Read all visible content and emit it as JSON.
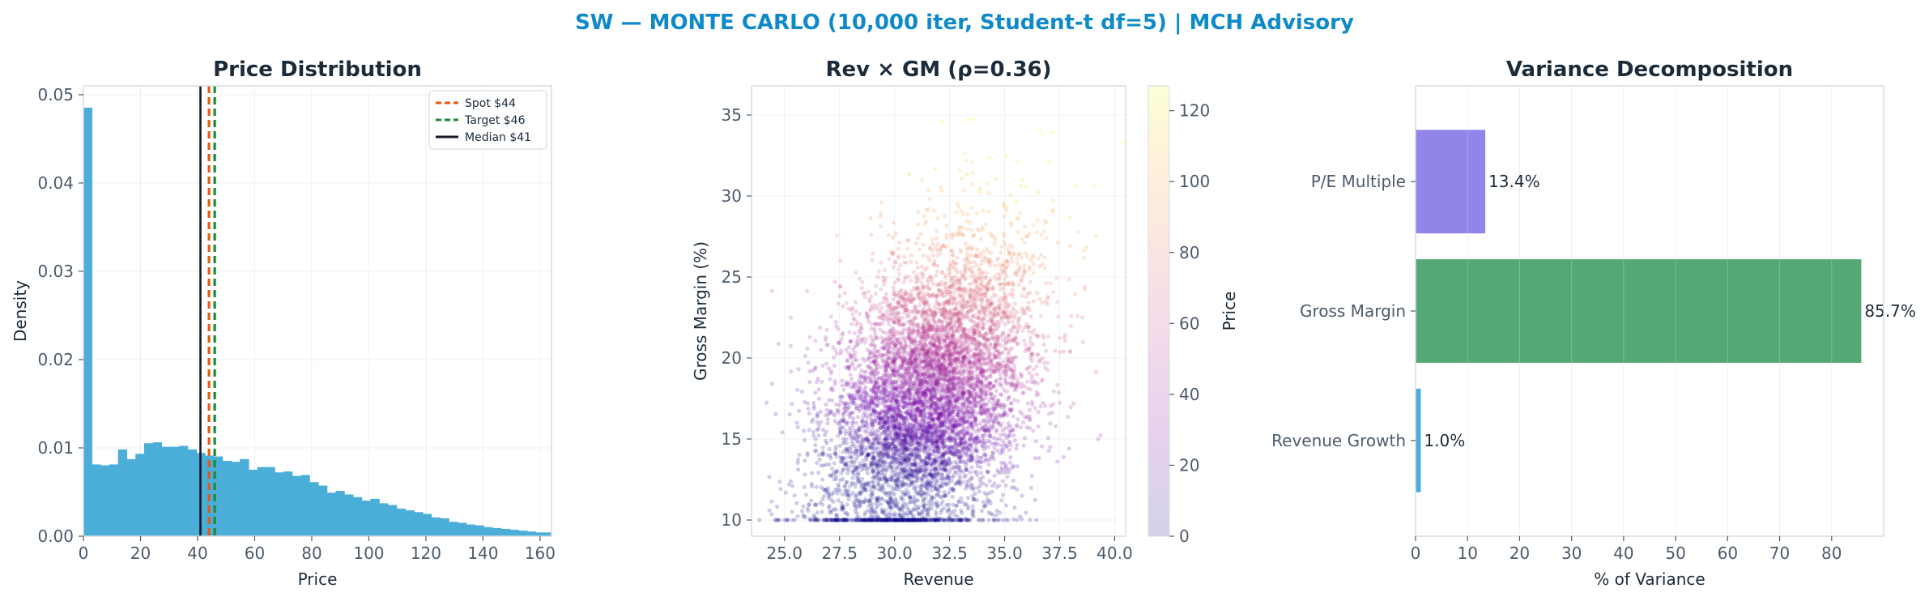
{
  "suptitle": "SW — MONTE CARLO (10,000 iter, Student-t df=5) | MCH Advisory",
  "colors": {
    "accent": "#0e8ac8",
    "hist": "#4aaed8",
    "spot": "#e8590c",
    "target": "#1a8a3a",
    "median": "#111827",
    "pe_bar": "#8b7ee8",
    "gm_bar": "#4aa36c",
    "rev_bar": "#3ea6d6"
  },
  "chart_data": [
    {
      "type": "bar",
      "title": "Price Distribution",
      "xlabel": "Price",
      "ylabel": "Density",
      "xlim": [
        0,
        164
      ],
      "ylim": [
        0,
        0.051
      ],
      "xticks": [
        "0",
        "20",
        "40",
        "60",
        "80",
        "100",
        "120",
        "140",
        "160"
      ],
      "yticks": [
        "0.00",
        "0.01",
        "0.02",
        "0.03",
        "0.04",
        "0.05"
      ],
      "bin_start": 0,
      "bin_width": 3.05,
      "densities": [
        0.0485,
        0.0081,
        0.008,
        0.0081,
        0.0098,
        0.0087,
        0.0093,
        0.0105,
        0.0106,
        0.0101,
        0.0101,
        0.0102,
        0.0098,
        0.0094,
        0.0091,
        0.009,
        0.0085,
        0.0084,
        0.0087,
        0.0075,
        0.0078,
        0.0078,
        0.0072,
        0.0073,
        0.0068,
        0.0069,
        0.0061,
        0.0057,
        0.0049,
        0.0051,
        0.0047,
        0.0044,
        0.004,
        0.0042,
        0.0037,
        0.0035,
        0.0031,
        0.0029,
        0.0027,
        0.0025,
        0.0021,
        0.002,
        0.0016,
        0.0015,
        0.0013,
        0.0012,
        0.001,
        0.0009,
        0.0008,
        0.0007,
        0.0006,
        0.0005,
        0.0004,
        0.0004
      ],
      "vlines": [
        {
          "name": "Spot $44",
          "x": 44,
          "style": "dashed",
          "color": "#e8590c"
        },
        {
          "name": "Target $46",
          "x": 46,
          "style": "dashed",
          "color": "#1a8a3a"
        },
        {
          "name": "Median $41",
          "x": 41,
          "style": "solid",
          "color": "#111827"
        }
      ],
      "grid": true,
      "legend": "top-right"
    },
    {
      "type": "scatter",
      "title": "Rev × GM (ρ=0.36)",
      "xlabel": "Revenue",
      "ylabel": "Gross Margin (%)",
      "xlim": [
        23.5,
        40.5
      ],
      "ylim": [
        9,
        36.8
      ],
      "xticks": [
        "25.0",
        "27.5",
        "30.0",
        "32.5",
        "35.0",
        "37.5",
        "40.0"
      ],
      "yticks": [
        "10",
        "15",
        "20",
        "25",
        "30",
        "35"
      ],
      "n_points": 10000,
      "distribution": {
        "mean_x": 31.5,
        "sd_x": 2.3,
        "mean_y": 17.5,
        "sd_y": 4.7,
        "rho": 0.36,
        "floor_y": 10
      },
      "colorbar": {
        "label": "Price",
        "range": [
          0,
          127
        ],
        "ticks": [
          "0",
          "20",
          "40",
          "60",
          "80",
          "100",
          "120"
        ]
      },
      "grid": true
    },
    {
      "type": "bar",
      "orientation": "horizontal",
      "title": "Variance Decomposition",
      "xlabel": "% of Variance",
      "categories": [
        "P/E Multiple",
        "Gross Margin",
        "Revenue Growth"
      ],
      "values": [
        13.4,
        85.7,
        1.0
      ],
      "value_labels": [
        "13.4%",
        "85.7%",
        "1.0%"
      ],
      "xlim": [
        0,
        90
      ],
      "xticks": [
        "0",
        "10",
        "20",
        "30",
        "40",
        "50",
        "60",
        "70",
        "80"
      ],
      "grid": true
    }
  ]
}
